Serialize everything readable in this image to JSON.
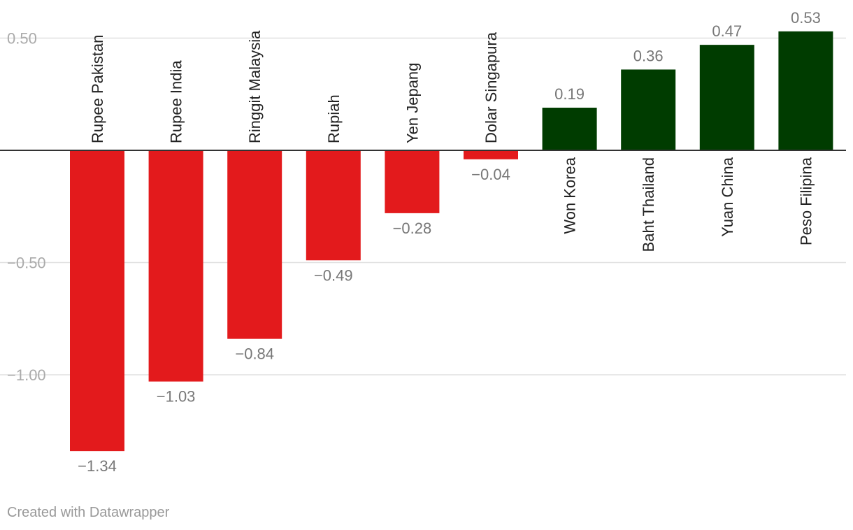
{
  "chart_data": {
    "type": "bar",
    "categories": [
      "Rupee Pakistan",
      "Rupee India",
      "Ringgit Malaysia",
      "Rupiah",
      "Yen Jepang",
      "Dolar Singapura",
      "Won Korea",
      "Baht Thailand",
      "Yuan China",
      "Peso Filipina"
    ],
    "values": [
      -1.34,
      -1.03,
      -0.84,
      -0.49,
      -0.28,
      -0.04,
      0.19,
      0.36,
      0.47,
      0.53
    ],
    "value_labels": [
      "−1.34",
      "−1.03",
      "−0.84",
      "−0.49",
      "−0.28",
      "−0.04",
      "0.19",
      "0.36",
      "0.47",
      "0.53"
    ],
    "yticks": [
      0.5,
      -0.5,
      -1.0
    ],
    "ytick_labels": [
      "0.50",
      "−0.50",
      "−1.00"
    ],
    "ylim": [
      -1.45,
      0.6
    ],
    "grid": true,
    "colors": {
      "negative": "#e31a1c",
      "positive": "#003c00",
      "grid": "#e0e0e0",
      "baseline": "#333333"
    },
    "title": "",
    "xlabel": "",
    "ylabel": ""
  },
  "footer": {
    "credit": "Created with Datawrapper"
  }
}
